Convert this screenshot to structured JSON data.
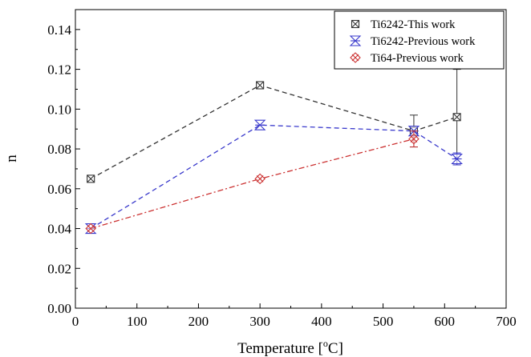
{
  "chart_data": {
    "type": "line",
    "xlabel_main": "Temperature [",
    "xlabel_sup": "o",
    "xlabel_end": "C]",
    "ylabel": "n",
    "xlim": [
      0,
      700
    ],
    "ylim": [
      0,
      0.15
    ],
    "xticks": [
      0,
      100,
      200,
      300,
      400,
      500,
      600,
      700
    ],
    "yticks": [
      0.0,
      0.02,
      0.04,
      0.06,
      0.08,
      0.1,
      0.12,
      0.14
    ],
    "grid": false,
    "legend_position": "top-right",
    "series": [
      {
        "name": "Ti6242-This work",
        "color": "#333333",
        "marker": "square-x",
        "line": "dashed",
        "x": [
          25,
          300,
          550,
          620
        ],
        "y": [
          0.065,
          0.112,
          0.089,
          0.096
        ],
        "err": [
          0.001,
          0.001,
          0.008,
          0.024
        ]
      },
      {
        "name": "Ti6242-Previous work",
        "color": "#3a3acc",
        "marker": "hourglass",
        "line": "dashed",
        "x": [
          25,
          300,
          550,
          620
        ],
        "y": [
          0.04,
          0.092,
          0.089,
          0.075
        ],
        "err": [
          0,
          0,
          0,
          0.003
        ]
      },
      {
        "name": "Ti64-Previous work",
        "color": "#cc3333",
        "marker": "diamond-x",
        "line": "dashdot",
        "x": [
          25,
          300,
          550
        ],
        "y": [
          0.04,
          0.065,
          0.085
        ],
        "err": [
          0,
          0,
          0.004
        ]
      }
    ]
  }
}
